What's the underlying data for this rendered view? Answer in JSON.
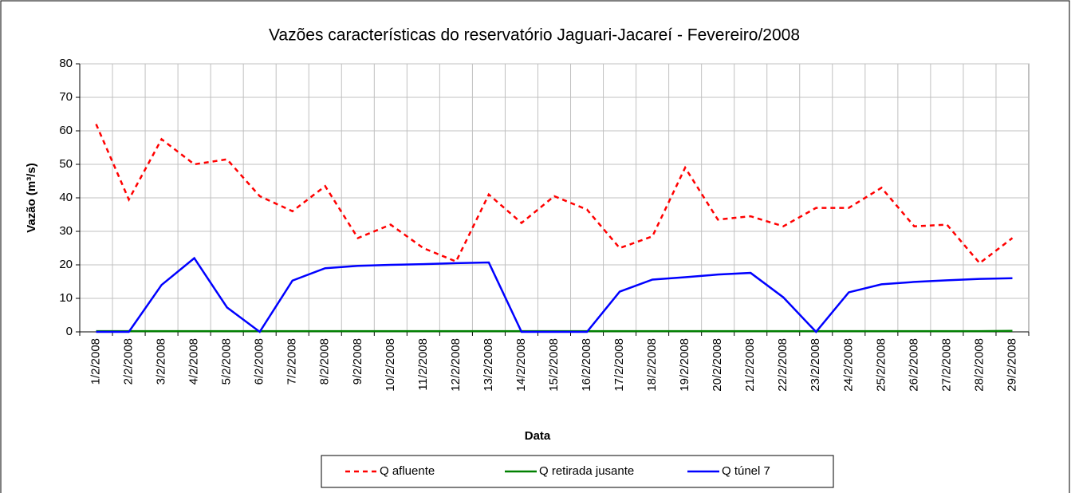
{
  "chart_data": {
    "type": "line",
    "title": "Vazões características do  reservatório Jaguari-Jacareí - Fevereiro/2008",
    "x_label": "Data",
    "y_label": "Vazão (m³/s)",
    "categories": [
      "1/2/2008",
      "2/2/2008",
      "3/2/2008",
      "4/2/2008",
      "5/2/2008",
      "6/2/2008",
      "7/2/2008",
      "8/2/2008",
      "9/2/2008",
      "10/2/2008",
      "11/2/2008",
      "12/2/2008",
      "13/2/2008",
      "14/2/2008",
      "15/2/2008",
      "16/2/2008",
      "17/2/2008",
      "18/2/2008",
      "19/2/2008",
      "20/2/2008",
      "21/2/2008",
      "22/2/2008",
      "23/2/2008",
      "24/2/2008",
      "25/2/2008",
      "26/2/2008",
      "27/2/2008",
      "28/2/2008",
      "29/2/2008"
    ],
    "series": [
      {
        "name": "Q afluente",
        "color": "#ff0000",
        "dashed": true,
        "values": [
          62,
          39.5,
          57.5,
          50,
          51.5,
          40.5,
          36,
          43.5,
          28,
          32,
          25,
          21,
          41,
          32.5,
          40.5,
          36.5,
          25,
          28.5,
          49,
          33.5,
          34.5,
          31.5,
          37,
          37,
          43,
          31.5,
          32,
          20.5,
          28
        ]
      },
      {
        "name": "Q retirada jusante",
        "color": "#008000",
        "dashed": false,
        "values": [
          0.2,
          0.2,
          0.2,
          0.2,
          0.2,
          0.2,
          0.2,
          0.2,
          0.2,
          0.2,
          0.2,
          0.2,
          0.2,
          0.2,
          0.2,
          0.2,
          0.2,
          0.2,
          0.2,
          0.2,
          0.2,
          0.2,
          0.2,
          0.2,
          0.2,
          0.2,
          0.2,
          0.2,
          0.3
        ]
      },
      {
        "name": "Q túnel 7",
        "color": "#0000ff",
        "dashed": false,
        "values": [
          0,
          0,
          14,
          22,
          7.3,
          0,
          15.3,
          19,
          19.7,
          20,
          20.2,
          20.5,
          20.7,
          0,
          0,
          0,
          12,
          15.6,
          16.3,
          17.1,
          17.6,
          10.3,
          0,
          11.8,
          14.2,
          14.9,
          15.4,
          15.8,
          16
        ]
      }
    ],
    "ylim": [
      0,
      80
    ],
    "yticks": [
      0,
      10,
      20,
      30,
      40,
      50,
      60,
      70,
      80
    ],
    "grid": true,
    "legend": "bottom"
  }
}
